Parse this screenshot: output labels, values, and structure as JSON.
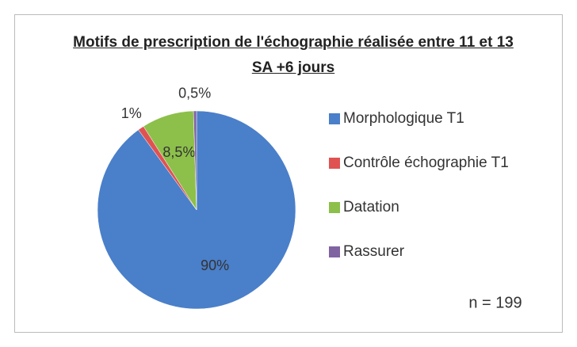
{
  "chart_data": {
    "type": "pie",
    "title": "Motifs de prescription de l'échographie réalisée entre 11 et 13 SA +6 jours",
    "categories": [
      "Morphologique T1",
      "Contrôle échographie T1",
      "Datation",
      "Rassurer"
    ],
    "values": [
      90,
      1,
      8.5,
      0.5
    ],
    "value_labels": [
      "90%",
      "1%",
      "8,5%",
      "0,5%"
    ],
    "colors": [
      "#4a7fc9",
      "#e05252",
      "#8cc04a",
      "#8064a2"
    ],
    "annotation": "n = 199",
    "legend": "right"
  }
}
